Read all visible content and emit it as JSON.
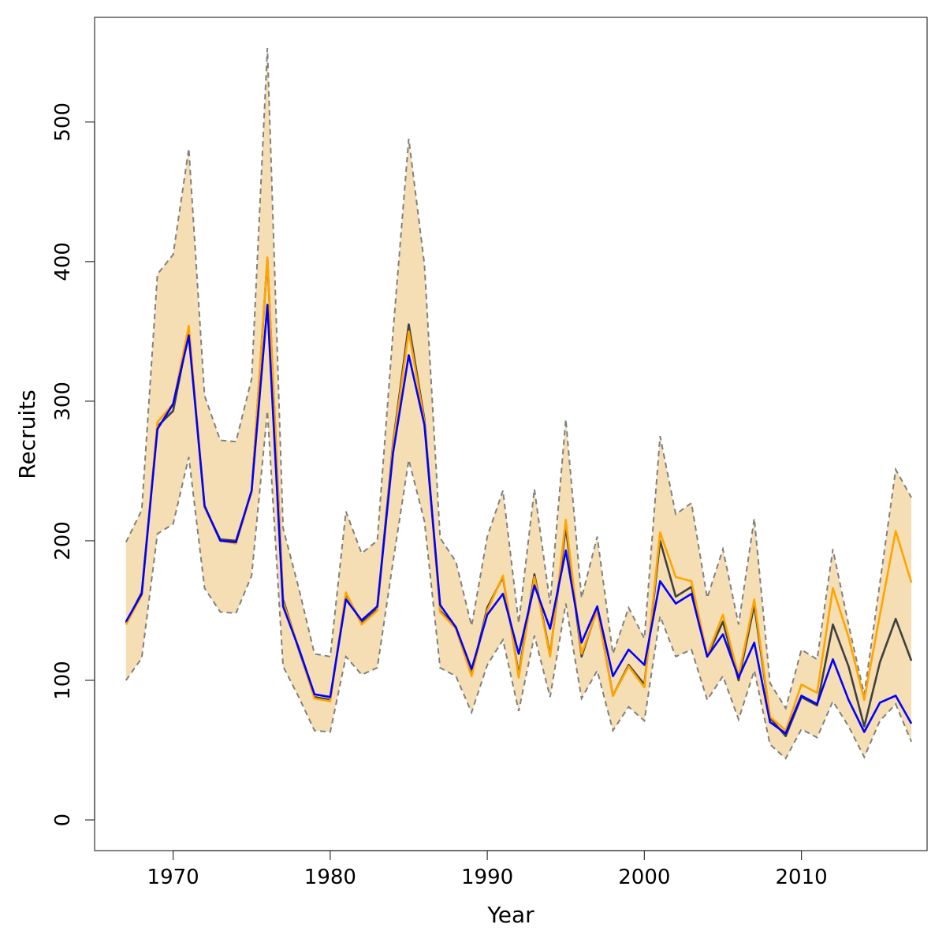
{
  "chart_data": {
    "type": "line",
    "title": "",
    "xlabel": "Year",
    "ylabel": "Recruits",
    "xlim": [
      1965,
      2018
    ],
    "ylim": [
      -22,
      575
    ],
    "x_ticks": [
      1970,
      1980,
      1990,
      2000,
      2010
    ],
    "y_ticks": [
      0,
      100,
      200,
      300,
      400,
      500
    ],
    "grid": false,
    "legend": "none",
    "x": [
      1967,
      1968,
      1969,
      1970,
      1971,
      1972,
      1973,
      1974,
      1975,
      1976,
      1977,
      1978,
      1979,
      1980,
      1981,
      1982,
      1983,
      1984,
      1985,
      1986,
      1987,
      1988,
      1989,
      1990,
      1991,
      1992,
      1993,
      1994,
      1995,
      1996,
      1997,
      1998,
      1999,
      2000,
      2001,
      2002,
      2003,
      2004,
      2005,
      2006,
      2007,
      2008,
      2009,
      2010,
      2011,
      2012,
      2013,
      2014,
      2015,
      2016,
      2017
    ],
    "band": {
      "fill_color": "#f5deb3",
      "edge_color": "#808080",
      "lower": [
        100,
        116,
        205,
        212,
        260,
        166,
        149,
        148,
        175,
        293,
        110,
        88,
        64,
        63,
        117,
        104,
        109,
        185,
        258,
        214,
        109,
        103,
        77,
        111,
        129,
        78,
        132,
        88,
        155,
        87,
        107,
        64,
        81,
        71,
        146,
        117,
        122,
        86,
        103,
        72,
        107,
        54,
        44,
        65,
        59,
        85,
        67,
        45,
        71,
        83,
        56
      ],
      "upper": [
        199,
        222,
        391,
        405,
        481,
        304,
        272,
        271,
        316,
        553,
        209,
        166,
        119,
        117,
        221,
        191,
        200,
        350,
        488,
        398,
        202,
        185,
        139,
        203,
        236,
        141,
        237,
        155,
        287,
        159,
        203,
        119,
        152,
        130,
        275,
        219,
        227,
        159,
        194,
        140,
        216,
        98,
        80,
        122,
        115,
        194,
        140,
        90,
        170,
        251,
        231
      ]
    },
    "series": [
      {
        "color": "#404040",
        "values": [
          141,
          163,
          282,
          293,
          350,
          224,
          201,
          200,
          235,
          402,
          158,
          122,
          88,
          86,
          162,
          141,
          151,
          270,
          355,
          287,
          150,
          138,
          104,
          152,
          174,
          104,
          176,
          118,
          210,
          117,
          151,
          89,
          111,
          97,
          200,
          160,
          167,
          117,
          142,
          100,
          154,
          73,
          60,
          88,
          82,
          140,
          110,
          67,
          113,
          144,
          114
        ]
      },
      {
        "color": "#ffa500",
        "values": [
          140,
          161,
          285,
          298,
          354,
          224,
          200,
          198,
          235,
          403,
          156,
          123,
          87,
          85,
          163,
          140,
          150,
          268,
          350,
          285,
          149,
          137,
          103,
          150,
          175,
          102,
          174,
          117,
          215,
          119,
          150,
          89,
          110,
          95,
          206,
          174,
          171,
          118,
          147,
          103,
          158,
          74,
          64,
          97,
          91,
          166,
          131,
          86,
          147,
          207,
          170
        ]
      },
      {
        "color": "#0000ff",
        "values": [
          142,
          162,
          280,
          298,
          347,
          225,
          200,
          199,
          236,
          369,
          153,
          123,
          90,
          88,
          158,
          143,
          153,
          263,
          333,
          283,
          154,
          138,
          108,
          147,
          162,
          119,
          168,
          137,
          193,
          127,
          153,
          103,
          122,
          111,
          171,
          155,
          162,
          117,
          133,
          102,
          127,
          70,
          62,
          89,
          83,
          115,
          86,
          63,
          84,
          89,
          69
        ]
      }
    ]
  }
}
